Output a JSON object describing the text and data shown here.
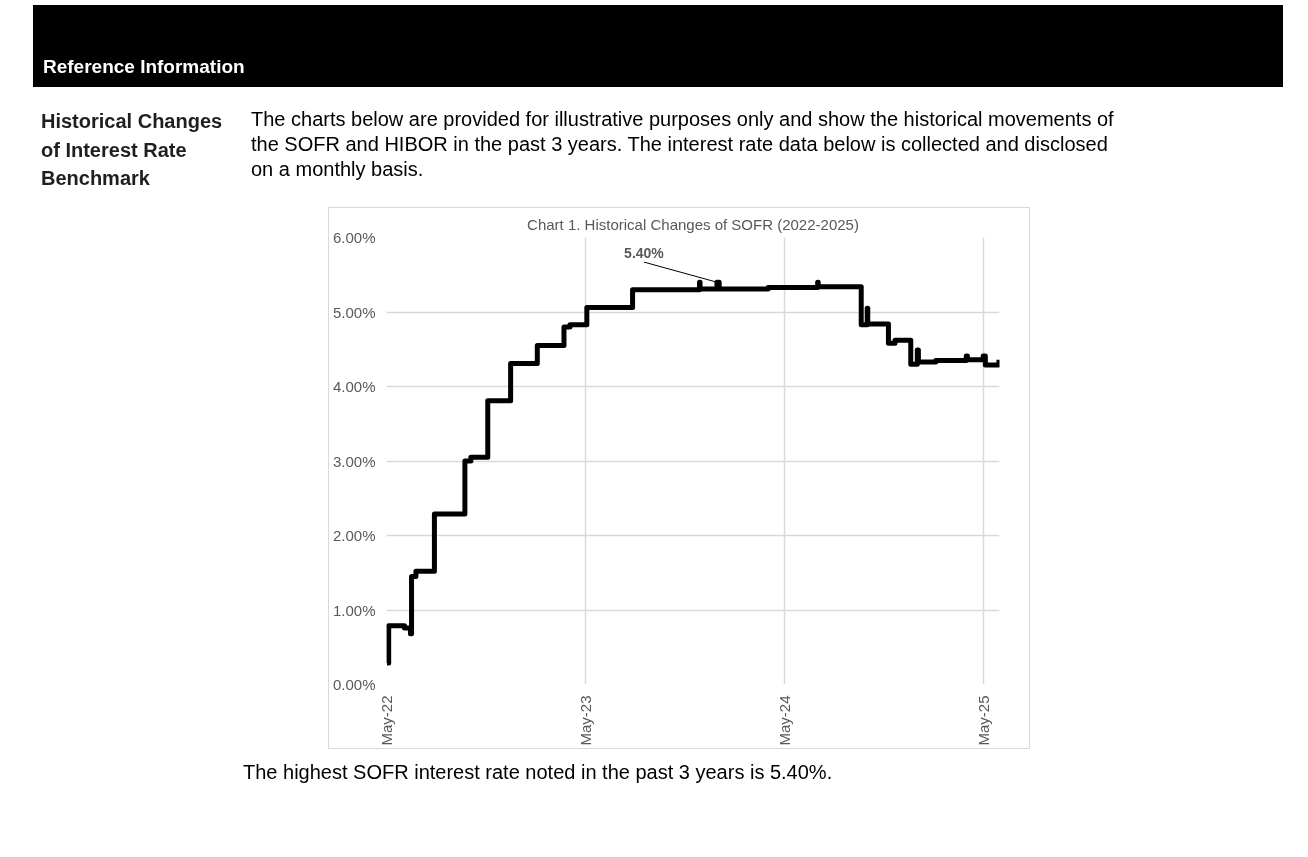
{
  "chart_data": {
    "type": "step",
    "title": "Chart 1. Historical Changes of SOFR (2022-2025)",
    "annotations": [
      "Reference Information",
      "Historical Changes of Interest Rate Benchmark",
      "The charts below are provided for illustrative purposes only and show the historical movements of the SOFR and HIBOR in the past 3 years. The interest rate data below is collected and disclosed on a monthly basis.",
      "The highest SOFR interest rate noted in the past 3 years is 5.40%.",
      {
        "text": "5.40%",
        "x": "2023-12-29",
        "y": 5.4
      }
    ],
    "x": [
      "2022-05-02",
      "2022-05-05",
      "2022-06-03",
      "2022-06-14",
      "2022-06-16",
      "2022-06-24",
      "2022-07-28",
      "2022-09-22",
      "2022-10-03",
      "2022-11-03",
      "2022-12-15",
      "2023-02-02",
      "2023-03-23",
      "2023-04-03",
      "2023-05-04",
      "2023-07-27",
      "2023-11-27",
      "2023-11-28",
      "2023-12-29",
      "2024-01-02",
      "2024-04-01",
      "2024-07-01",
      "2024-07-02",
      "2024-09-19",
      "2024-09-30",
      "2024-10-01",
      "2024-11-08",
      "2024-11-20",
      "2024-12-19",
      "2024-12-31",
      "2025-01-02",
      "2025-02-03",
      "2025-03-31",
      "2025-04-02",
      "2025-05-01",
      "2025-05-05",
      "2025-05-30"
    ],
    "series": [
      {
        "color": "#000000",
        "values": [
          0.29,
          0.79,
          0.76,
          0.68,
          1.45,
          1.52,
          2.29,
          3.0,
          3.05,
          3.81,
          4.31,
          4.55,
          4.8,
          4.83,
          5.06,
          5.3,
          5.4,
          5.31,
          5.4,
          5.31,
          5.33,
          5.4,
          5.34,
          4.83,
          5.05,
          4.84,
          4.58,
          4.62,
          4.3,
          4.49,
          4.33,
          4.35,
          4.41,
          4.36,
          4.41,
          4.29,
          4.36
        ]
      }
    ],
    "xlim": [
      "2022-05-01",
      "2025-05-31"
    ],
    "xticks": [
      {
        "value": "2022-05-01",
        "label": "May-22"
      },
      {
        "value": "2023-05-01",
        "label": "May-23"
      },
      {
        "value": "2024-05-01",
        "label": "May-24"
      },
      {
        "value": "2025-05-01",
        "label": "May-25"
      }
    ],
    "ylim": [
      0,
      6
    ],
    "yticks": [
      {
        "value": 0,
        "label": "0.00%"
      },
      {
        "value": 1,
        "label": "1.00%"
      },
      {
        "value": 2,
        "label": "2.00%"
      },
      {
        "value": 3,
        "label": "3.00%"
      },
      {
        "value": 4,
        "label": "4.00%"
      },
      {
        "value": 5,
        "label": "5.00%"
      },
      {
        "value": 6,
        "label": "6.00%"
      }
    ],
    "grid": true,
    "marker": "none",
    "line_style": "solid"
  }
}
